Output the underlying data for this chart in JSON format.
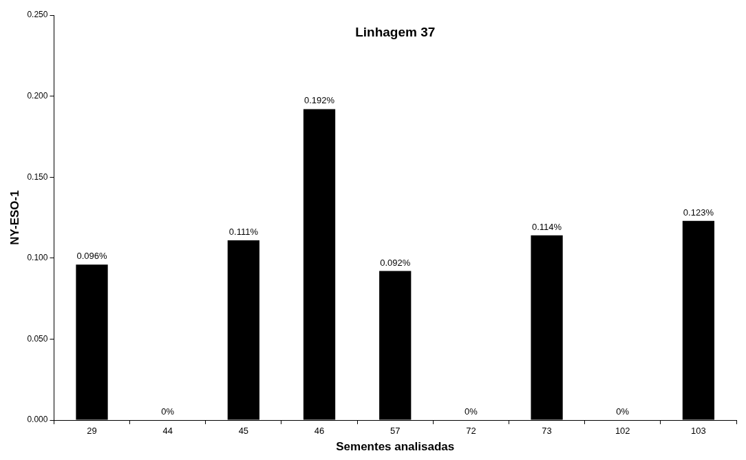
{
  "chart_data": {
    "type": "bar",
    "title": "Linhagem 37",
    "xlabel": "Sementes analisadas",
    "ylabel": "NY-ESO-1",
    "categories": [
      "29",
      "44",
      "45",
      "46",
      "57",
      "72",
      "73",
      "102",
      "103"
    ],
    "values": [
      0.096,
      0,
      0.111,
      0.192,
      0.092,
      0,
      0.114,
      0,
      0.123
    ],
    "value_labels": [
      "0.096%",
      "0%",
      "0.111%",
      "0.192%",
      "0.092%",
      "0%",
      "0.114%",
      "0%",
      "0.123%"
    ],
    "color": "#000000",
    "ylim": [
      0,
      0.25
    ],
    "yticks": [
      {
        "value": 0,
        "label": "0.000"
      },
      {
        "value": 0.05,
        "label": "0.050"
      },
      {
        "value": 0.1,
        "label": "0.100"
      },
      {
        "value": 0.15,
        "label": "0.150"
      },
      {
        "value": 0.2,
        "label": "0.200"
      },
      {
        "value": 0.25,
        "label": "0.250"
      }
    ],
    "grid": false,
    "legend": false
  }
}
